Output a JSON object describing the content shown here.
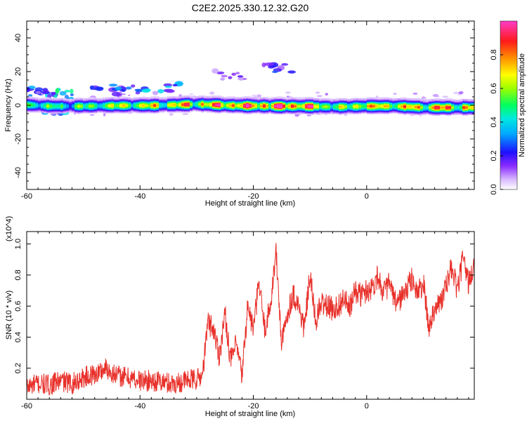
{
  "title": "C2E2.2025.330.12.32.G20",
  "colors": {
    "band": "#00b0ff",
    "snr_line": "#e8302a",
    "colormap": [
      "#ffffff",
      "#c9a3ff",
      "#7b1fff",
      "#1010ff",
      "#00c8ff",
      "#00ffa0",
      "#7dff00",
      "#ffff00",
      "#ff9800",
      "#ff1a1a",
      "#ff3cc0"
    ]
  },
  "chart_data": [
    {
      "type": "heatmap",
      "title": "C2E2.2025.330.12.32.G20",
      "xlabel": "Height of straight line (km)",
      "ylabel": "Frequency (Hz)",
      "xlim": [
        -60,
        19
      ],
      "ylim": [
        -50,
        50
      ],
      "xticks": [
        -60,
        -40,
        -20,
        0
      ],
      "yticks": [
        -40,
        -20,
        0,
        20,
        40
      ],
      "xtick_labels": [
        "-60",
        "-40",
        "-20",
        "0"
      ],
      "ytick_labels": [
        "-40",
        "-20",
        "0",
        "20",
        "40"
      ],
      "colorbar": {
        "label": "Normalized spectral amplitude",
        "range": [
          0,
          1
        ],
        "ticks": [
          0,
          0.2,
          0.4,
          0.6,
          0.8
        ],
        "tick_labels": [
          "0.0",
          "0.2",
          "0.4",
          "0.6",
          "0.8"
        ]
      },
      "main_band": {
        "center_freq_hz": 0,
        "halfwidth_hz": 3.5,
        "peaks": [
          {
            "x": -60,
            "f": 2,
            "amp": 0.6
          },
          {
            "x": -56,
            "f": 0,
            "amp": 0.5
          },
          {
            "x": -50,
            "f": 0,
            "amp": 0.55
          },
          {
            "x": -44,
            "f": 1,
            "amp": 0.7
          },
          {
            "x": -38,
            "f": 1,
            "amp": 0.7
          },
          {
            "x": -30,
            "f": 3,
            "amp": 0.85
          },
          {
            "x": -24,
            "f": 1,
            "amp": 0.9
          },
          {
            "x": -15,
            "f": 0,
            "amp": 0.95
          },
          {
            "x": -12,
            "f": 0,
            "amp": 0.95
          },
          {
            "x": -5,
            "f": -1,
            "amp": 0.6
          },
          {
            "x": 0,
            "f": 0,
            "amp": 0.8
          },
          {
            "x": 5,
            "f": 0,
            "amp": 0.75
          },
          {
            "x": 10,
            "f": -2,
            "amp": 0.85
          },
          {
            "x": 17,
            "f": -2,
            "amp": 0.8
          }
        ]
      },
      "scatter_blobs": [
        {
          "x": -58,
          "f": 8,
          "amp": 0.3
        },
        {
          "x": -46,
          "f": 8,
          "amp": 0.25
        },
        {
          "x": -42,
          "f": 9,
          "amp": 0.3
        },
        {
          "x": -36,
          "f": 11,
          "amp": 0.35
        },
        {
          "x": -24,
          "f": 18,
          "amp": 0.15
        },
        {
          "x": -16,
          "f": 22,
          "amp": 0.25
        }
      ]
    },
    {
      "type": "line",
      "xlabel": "Height of straight line (km)",
      "ylabel": "SNR (10 * v/v)",
      "y_scale_label": "(x10^4)",
      "xlim": [
        -60,
        19
      ],
      "ylim": [
        0,
        1.08
      ],
      "xticks": [
        -60,
        -40,
        -20,
        0
      ],
      "yticks": [
        0.2,
        0.4,
        0.6,
        0.8,
        1.0
      ],
      "xtick_labels": [
        "-60",
        "-40",
        "-20",
        "0"
      ],
      "ytick_labels": [
        "0.2",
        "0.4",
        "0.6",
        "0.8",
        "1.0"
      ],
      "series": [
        {
          "name": "SNR",
          "x": [
            -60,
            -58,
            -56,
            -54,
            -52,
            -50,
            -48,
            -46,
            -44,
            -42,
            -40,
            -38,
            -36,
            -34,
            -32,
            -30,
            -29,
            -28,
            -27,
            -26,
            -25,
            -24,
            -23,
            -22,
            -21,
            -20,
            -19,
            -18,
            -17,
            -16,
            -15,
            -14,
            -13,
            -12,
            -11,
            -10,
            -9,
            -8,
            -7,
            -6,
            -5,
            -4,
            -3,
            -2,
            -1,
            0,
            1,
            2,
            3,
            4,
            5,
            6,
            7,
            8,
            9,
            10,
            11,
            12,
            13,
            14,
            15,
            16,
            17,
            18,
            19
          ],
          "values": [
            0.08,
            0.1,
            0.09,
            0.12,
            0.1,
            0.14,
            0.16,
            0.2,
            0.15,
            0.14,
            0.12,
            0.12,
            0.11,
            0.1,
            0.12,
            0.13,
            0.15,
            0.5,
            0.45,
            0.28,
            0.55,
            0.25,
            0.35,
            0.15,
            0.6,
            0.45,
            0.75,
            0.45,
            0.6,
            0.95,
            0.35,
            0.55,
            0.68,
            0.6,
            0.45,
            0.8,
            0.5,
            0.62,
            0.6,
            0.58,
            0.6,
            0.65,
            0.58,
            0.7,
            0.67,
            0.7,
            0.72,
            0.8,
            0.68,
            0.75,
            0.62,
            0.65,
            0.7,
            0.78,
            0.68,
            0.75,
            0.45,
            0.6,
            0.62,
            0.72,
            0.85,
            0.7,
            0.9,
            0.75,
            0.85
          ]
        }
      ]
    }
  ]
}
